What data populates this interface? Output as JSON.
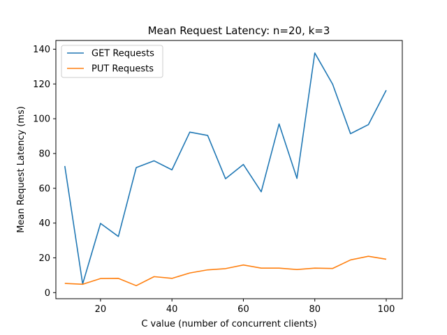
{
  "chart_data": {
    "type": "line",
    "title": "Mean Request Latency: n=20, k=3",
    "xlabel": "C value (number of concurrent clients)",
    "ylabel": "Mean Request Latency (ms)",
    "xlim": [
      7.5,
      104.5
    ],
    "ylim": [
      -3.5,
      145
    ],
    "xticks": [
      20,
      40,
      60,
      80,
      100
    ],
    "yticks": [
      0,
      20,
      40,
      60,
      80,
      100,
      120,
      140
    ],
    "grid": false,
    "legend_position": "upper-left",
    "x": [
      10,
      15,
      20,
      25,
      30,
      35,
      40,
      45,
      50,
      55,
      60,
      65,
      70,
      75,
      80,
      85,
      90,
      95,
      100
    ],
    "series": [
      {
        "name": "GET Requests",
        "color": "#1f77b4",
        "values": [
          72.8,
          5.0,
          39.8,
          32.3,
          71.9,
          75.8,
          70.6,
          92.3,
          90.4,
          65.5,
          73.7,
          58.0,
          97.0,
          65.7,
          137.8,
          119.8,
          91.4,
          96.6,
          116.4
        ]
      },
      {
        "name": "PUT Requests",
        "color": "#ff7f0e",
        "values": [
          5.3,
          4.8,
          8.1,
          8.2,
          4.0,
          9.2,
          8.2,
          11.3,
          13.1,
          13.8,
          15.9,
          14.1,
          14.1,
          13.3,
          14.1,
          13.9,
          18.8,
          20.9,
          19.2
        ]
      }
    ]
  }
}
